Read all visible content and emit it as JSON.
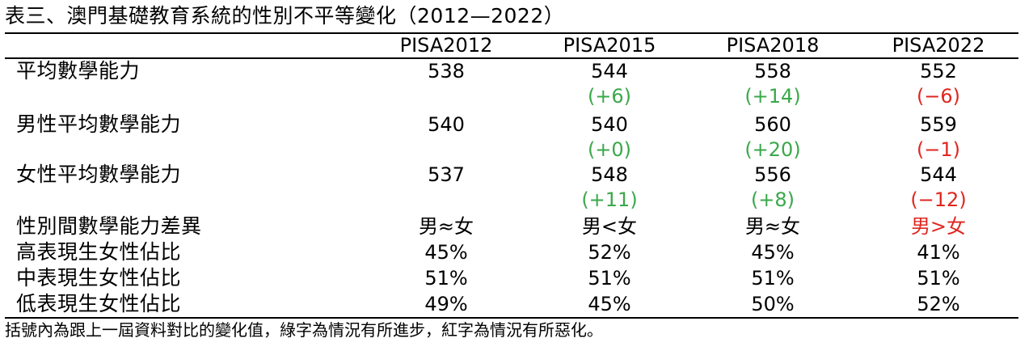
{
  "table": {
    "title": "表三、澳門基礎教育系統的性別不平等變化（2012—2022）",
    "columns": [
      "PISA2012",
      "PISA2015",
      "PISA2018",
      "PISA2022"
    ],
    "rows": [
      {
        "label": "平均數學能力",
        "values": [
          "538",
          "544",
          "558",
          "552"
        ],
        "changes": [
          "",
          "(+6)",
          "(+14)",
          "(−6)"
        ]
      },
      {
        "label": "男性平均數學能力",
        "values": [
          "540",
          "540",
          "560",
          "559"
        ],
        "changes": [
          "",
          "(+0)",
          "(+20)",
          "(−1)"
        ]
      },
      {
        "label": "女性平均數學能力",
        "values": [
          "537",
          "548",
          "556",
          "544"
        ],
        "changes": [
          "",
          "(+11)",
          "(+8)",
          "(−12)"
        ]
      },
      {
        "label": "性別間數學能力差異",
        "values": [
          "男≈女",
          "男<女",
          "男≈女",
          "男>女"
        ]
      },
      {
        "label": "高表現生女性佔比",
        "values": [
          "45%",
          "52%",
          "45%",
          "41%"
        ]
      },
      {
        "label": "中表現生女性佔比",
        "values": [
          "51%",
          "51%",
          "51%",
          "51%"
        ]
      },
      {
        "label": "低表現生女性佔比",
        "values": [
          "49%",
          "45%",
          "50%",
          "52%"
        ]
      }
    ],
    "note": "括號內為跟上一屆資料對比的變化值，綠字為情況有所進步，紅字為情況有所惡化。"
  },
  "colors": {
    "improved": "#3aa84a",
    "worsened": "#e0261f",
    "text": "#000000"
  }
}
